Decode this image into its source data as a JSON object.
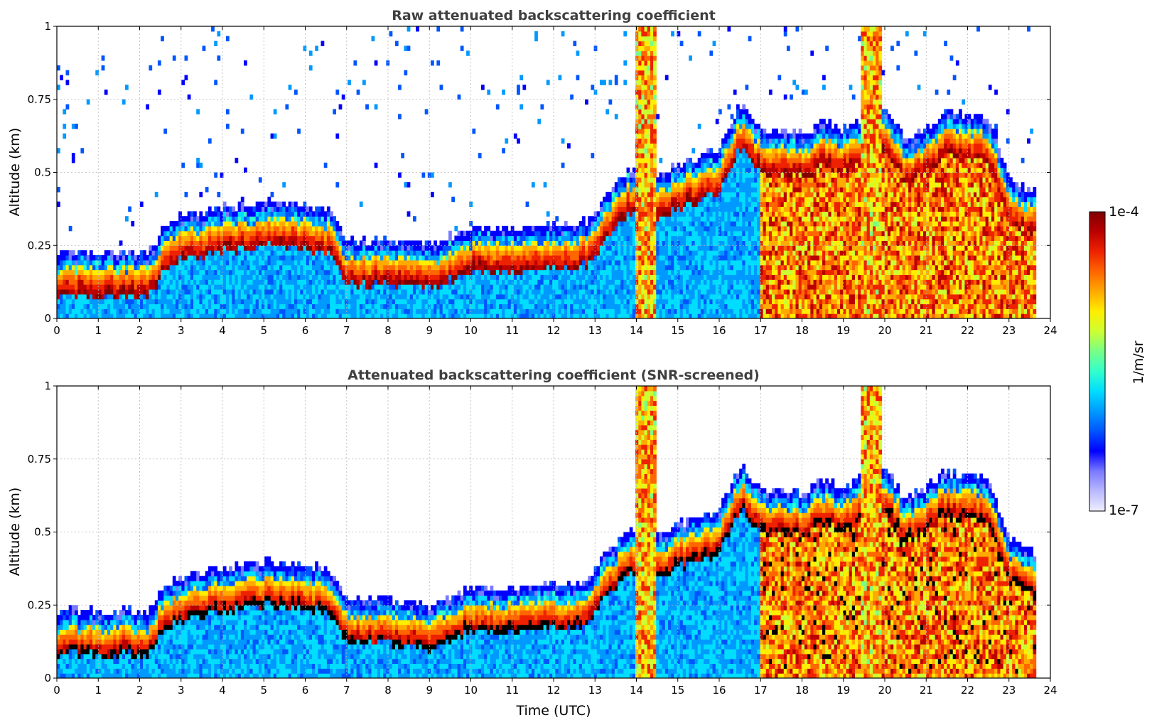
{
  "figure": {
    "xlabel": "Time (UTC)",
    "colorbar": {
      "label": "1/m/sr",
      "max_label": "1e-4",
      "min_label": "1e-7",
      "scale": "log",
      "range": [
        1e-07,
        0.0001
      ]
    },
    "colormap": [
      "#eeeeff",
      "#b9b9ff",
      "#7a7aff",
      "#0000ff",
      "#0055ff",
      "#0099ff",
      "#00ddff",
      "#33ffcc",
      "#77ff88",
      "#ccff33",
      "#ffee00",
      "#ffaa00",
      "#ff6600",
      "#ee2200",
      "#bb0000",
      "#800000"
    ],
    "mask_color": "#000000"
  },
  "chart_data": [
    {
      "type": "heatmap",
      "title": "Raw attenuated backscattering coefficient",
      "xlabel": "",
      "ylabel": "Altitude (km)",
      "xlim": [
        0,
        24
      ],
      "ylim": [
        0,
        1
      ],
      "x_ticks": [
        "0",
        "1",
        "2",
        "3",
        "4",
        "5",
        "6",
        "7",
        "8",
        "9",
        "10",
        "11",
        "12",
        "13",
        "14",
        "15",
        "16",
        "17",
        "18",
        "19",
        "20",
        "21",
        "22",
        "23",
        "24"
      ],
      "y_ticks": [
        "0",
        "0.25",
        "0.5",
        "0.75",
        "1"
      ],
      "grid": true,
      "layer_top_km": [
        [
          0,
          0.2
        ],
        [
          2.3,
          0.2
        ],
        [
          2.5,
          0.27
        ],
        [
          3,
          0.32
        ],
        [
          4,
          0.35
        ],
        [
          5,
          0.37
        ],
        [
          6,
          0.36
        ],
        [
          6.6,
          0.34
        ],
        [
          7,
          0.24
        ],
        [
          8,
          0.24
        ],
        [
          9,
          0.22
        ],
        [
          10,
          0.28
        ],
        [
          11,
          0.28
        ],
        [
          12,
          0.29
        ],
        [
          12.8,
          0.3
        ],
        [
          13.2,
          0.38
        ],
        [
          13.8,
          0.48
        ],
        [
          14.5,
          0.46
        ],
        [
          15,
          0.5
        ],
        [
          16,
          0.55
        ],
        [
          16.5,
          0.7
        ],
        [
          17,
          0.62
        ],
        [
          18,
          0.6
        ],
        [
          18.5,
          0.65
        ],
        [
          19,
          0.62
        ],
        [
          20,
          0.7
        ],
        [
          20.5,
          0.58
        ],
        [
          21,
          0.62
        ],
        [
          21.5,
          0.68
        ],
        [
          22,
          0.66
        ],
        [
          22.5,
          0.66
        ],
        [
          23,
          0.45
        ],
        [
          23.6,
          0.4
        ]
      ],
      "backscatter_log10_peak": [
        [
          0,
          -4
        ],
        [
          2.4,
          -4
        ],
        [
          3,
          -4
        ],
        [
          6.6,
          -4
        ],
        [
          7,
          -4
        ],
        [
          9,
          -4
        ],
        [
          10,
          -4
        ],
        [
          13,
          -4
        ],
        [
          14,
          -4
        ],
        [
          17,
          -4
        ],
        [
          24,
          -4
        ]
      ],
      "precipitation_hours": [
        [
          14,
          14.5
        ],
        [
          19.4,
          19.9
        ]
      ],
      "valid_hours": [
        0,
        23.65
      ]
    },
    {
      "type": "heatmap",
      "title": "Attenuated backscattering coefficient (SNR-screened)",
      "xlabel": "Time (UTC)",
      "ylabel": "Altitude (km)",
      "xlim": [
        0,
        24
      ],
      "ylim": [
        0,
        1
      ],
      "x_ticks": [
        "0",
        "1",
        "2",
        "3",
        "4",
        "5",
        "6",
        "7",
        "8",
        "9",
        "10",
        "11",
        "12",
        "13",
        "14",
        "15",
        "16",
        "17",
        "18",
        "19",
        "20",
        "21",
        "22",
        "23",
        "24"
      ],
      "y_ticks": [
        "0",
        "0.25",
        "0.5",
        "0.75",
        "1"
      ],
      "grid": true,
      "saturated_color": "black",
      "precipitation_hours": [
        [
          14,
          14.5
        ],
        [
          19.4,
          19.9
        ]
      ],
      "valid_hours": [
        0,
        23.65
      ]
    }
  ]
}
